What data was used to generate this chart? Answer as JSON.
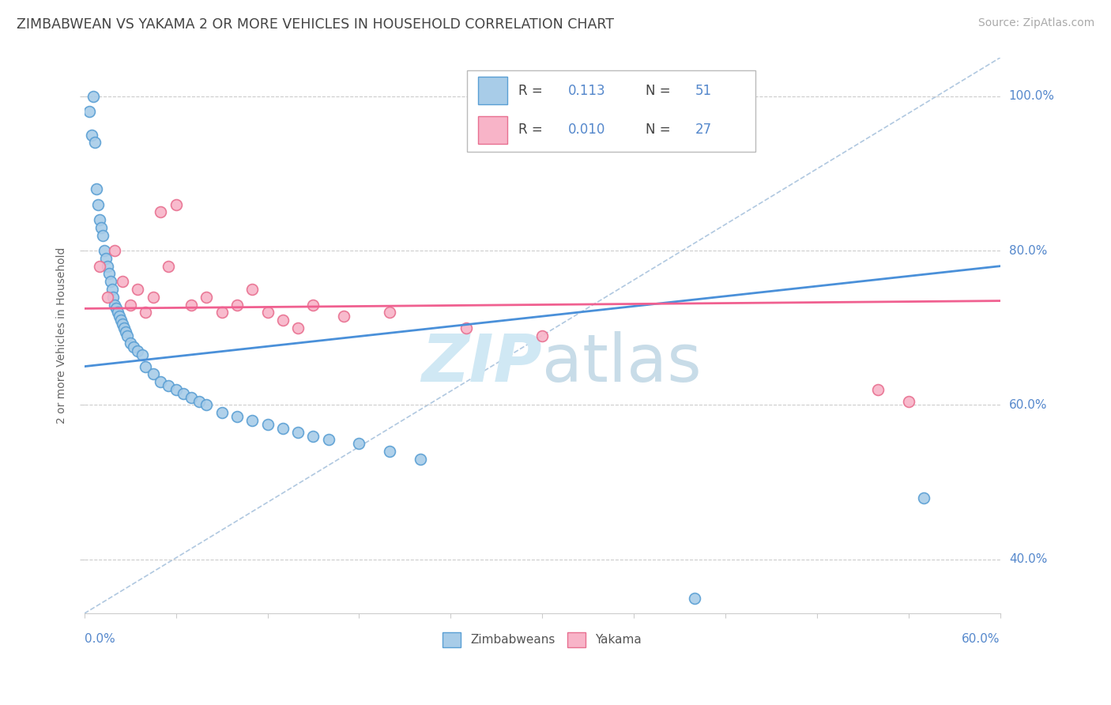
{
  "title": "ZIMBABWEAN VS YAKAMA 2 OR MORE VEHICLES IN HOUSEHOLD CORRELATION CHART",
  "source": "Source: ZipAtlas.com",
  "ylabel": "2 or more Vehicles in Household",
  "x_min": 0.0,
  "x_max": 60.0,
  "y_min": 33.0,
  "y_max": 105.0,
  "yticks": [
    40,
    60,
    80,
    100
  ],
  "blue_color": "#a8cce8",
  "blue_edge": "#5a9fd4",
  "pink_color": "#f8b4c8",
  "pink_edge": "#e87090",
  "blue_line": "#4a90d9",
  "pink_line": "#f06090",
  "dash_color": "#b0c8e0",
  "watermark_color": "#d0e8f4",
  "zimbabwe_x": [
    0.3,
    0.5,
    0.6,
    0.7,
    0.8,
    0.9,
    1.0,
    1.1,
    1.2,
    1.3,
    1.4,
    1.5,
    1.6,
    1.7,
    1.8,
    1.9,
    2.0,
    2.1,
    2.2,
    2.3,
    2.4,
    2.5,
    2.6,
    2.7,
    2.8,
    3.0,
    3.2,
    3.5,
    3.8,
    4.0,
    4.5,
    5.0,
    5.5,
    6.0,
    6.5,
    7.0,
    7.5,
    8.0,
    9.0,
    10.0,
    11.0,
    12.0,
    13.0,
    14.0,
    15.0,
    16.0,
    18.0,
    20.0,
    22.0,
    40.0,
    55.0
  ],
  "zimbabwe_y": [
    98.0,
    95.0,
    100.0,
    94.0,
    88.0,
    86.0,
    84.0,
    83.0,
    82.0,
    80.0,
    79.0,
    78.0,
    77.0,
    76.0,
    75.0,
    74.0,
    73.0,
    72.5,
    72.0,
    71.5,
    71.0,
    70.5,
    70.0,
    69.5,
    69.0,
    68.0,
    67.5,
    67.0,
    66.5,
    65.0,
    64.0,
    63.0,
    62.5,
    62.0,
    61.5,
    61.0,
    60.5,
    60.0,
    59.0,
    58.5,
    58.0,
    57.5,
    57.0,
    56.5,
    56.0,
    55.5,
    55.0,
    54.0,
    53.0,
    35.0,
    48.0
  ],
  "yakama_x": [
    1.0,
    1.5,
    2.0,
    2.5,
    3.0,
    3.5,
    4.0,
    4.5,
    5.0,
    5.5,
    6.0,
    7.0,
    8.0,
    9.0,
    10.0,
    11.0,
    12.0,
    13.0,
    14.0,
    15.0,
    17.0,
    20.0,
    25.0,
    30.0,
    52.0,
    54.0
  ],
  "yakama_y": [
    78.0,
    74.0,
    80.0,
    76.0,
    73.0,
    75.0,
    72.0,
    74.0,
    85.0,
    78.0,
    86.0,
    73.0,
    74.0,
    72.0,
    73.0,
    75.0,
    72.0,
    71.0,
    70.0,
    73.0,
    71.5,
    72.0,
    70.0,
    69.0,
    62.0,
    60.5
  ],
  "zim_line_x0": 0.0,
  "zim_line_x1": 60.0,
  "zim_line_y0": 65.0,
  "zim_line_y1": 78.0,
  "yak_line_x0": 0.0,
  "yak_line_x1": 60.0,
  "yak_line_y0": 72.5,
  "yak_line_y1": 73.5
}
